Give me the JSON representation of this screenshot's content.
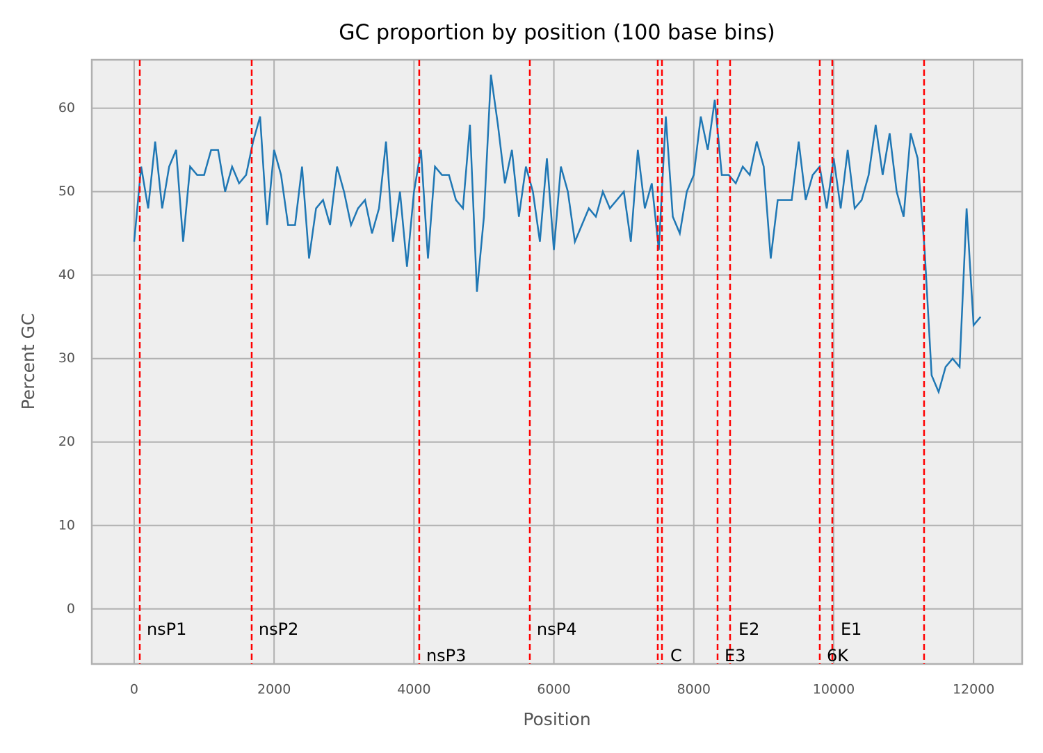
{
  "chart_data": {
    "type": "line",
    "title": "GC proportion by position (100 base bins)",
    "xlabel": "Position",
    "ylabel": "Percent GC",
    "color": "#1f77b4",
    "vline_color": "#ff0000",
    "grid": true,
    "xlim": [
      -606,
      12694
    ],
    "ylim": [
      -6.6,
      65.8
    ],
    "xticks": [
      0,
      2000,
      4000,
      6000,
      8000,
      10000,
      12000
    ],
    "yticks": [
      0,
      10,
      20,
      30,
      40,
      50,
      60
    ],
    "x": [
      0,
      100,
      200,
      300,
      400,
      500,
      600,
      700,
      800,
      900,
      1000,
      1100,
      1200,
      1300,
      1400,
      1500,
      1600,
      1700,
      1800,
      1900,
      2000,
      2100,
      2200,
      2300,
      2400,
      2500,
      2600,
      2700,
      2800,
      2900,
      3000,
      3100,
      3200,
      3300,
      3400,
      3500,
      3600,
      3700,
      3800,
      3900,
      4000,
      4100,
      4200,
      4300,
      4400,
      4500,
      4600,
      4700,
      4800,
      4900,
      5000,
      5100,
      5200,
      5300,
      5400,
      5500,
      5600,
      5700,
      5800,
      5900,
      6000,
      6100,
      6200,
      6300,
      6400,
      6500,
      6600,
      6700,
      6800,
      6900,
      7000,
      7100,
      7200,
      7300,
      7400,
      7500,
      7600,
      7700,
      7800,
      7900,
      8000,
      8100,
      8200,
      8300,
      8400,
      8500,
      8600,
      8700,
      8800,
      8900,
      9000,
      9100,
      9200,
      9300,
      9400,
      9500,
      9600,
      9700,
      9800,
      9900,
      10000,
      10100,
      10200,
      10300,
      10400,
      10500,
      10600,
      10700,
      10800,
      10900,
      11000,
      11100,
      11200,
      11300,
      11400,
      11500,
      11600,
      11700,
      11800,
      11900,
      12000,
      12100
    ],
    "values": [
      44,
      53,
      48,
      56,
      48,
      53,
      55,
      44,
      53,
      52,
      52,
      55,
      55,
      50,
      53,
      51,
      52,
      56,
      59,
      46,
      55,
      52,
      46,
      46,
      53,
      42,
      48,
      49,
      46,
      53,
      50,
      46,
      48,
      49,
      45,
      48,
      56,
      44,
      50,
      41,
      50,
      55,
      42,
      53,
      52,
      52,
      49,
      48,
      58,
      38,
      47,
      64,
      58,
      51,
      55,
      47,
      53,
      50,
      44,
      54,
      43,
      53,
      50,
      44,
      46,
      48,
      47,
      50,
      48,
      49,
      50,
      44,
      55,
      48,
      51,
      43,
      59,
      47,
      45,
      50,
      52,
      59,
      55,
      61,
      52,
      52,
      51,
      53,
      52,
      56,
      53,
      42,
      49,
      49,
      49,
      56,
      49,
      52,
      53,
      48,
      54,
      48,
      55,
      48,
      49,
      52,
      58,
      52,
      57,
      50,
      47,
      57,
      54,
      43,
      28,
      26,
      29,
      30,
      29,
      48,
      34,
      35
    ],
    "vlines": [
      80,
      1680,
      4075,
      5656,
      7485,
      7545,
      8340,
      8519,
      9801,
      9980,
      11292
    ],
    "annotations": [
      {
        "text": "nsP1",
        "x": 179,
        "y": -2.5
      },
      {
        "text": "nsP2",
        "x": 1779,
        "y": -2.5
      },
      {
        "text": "nsP3",
        "x": 4175,
        "y": -5.7
      },
      {
        "text": "nsP4",
        "x": 5755,
        "y": -2.5
      },
      {
        "text": "C",
        "x": 7664,
        "y": -5.7
      },
      {
        "text": "E3",
        "x": 8439,
        "y": -5.7
      },
      {
        "text": "E2",
        "x": 8638,
        "y": -2.5
      },
      {
        "text": "6K",
        "x": 9901,
        "y": -5.7
      },
      {
        "text": "E1",
        "x": 10099,
        "y": -2.5
      }
    ]
  }
}
